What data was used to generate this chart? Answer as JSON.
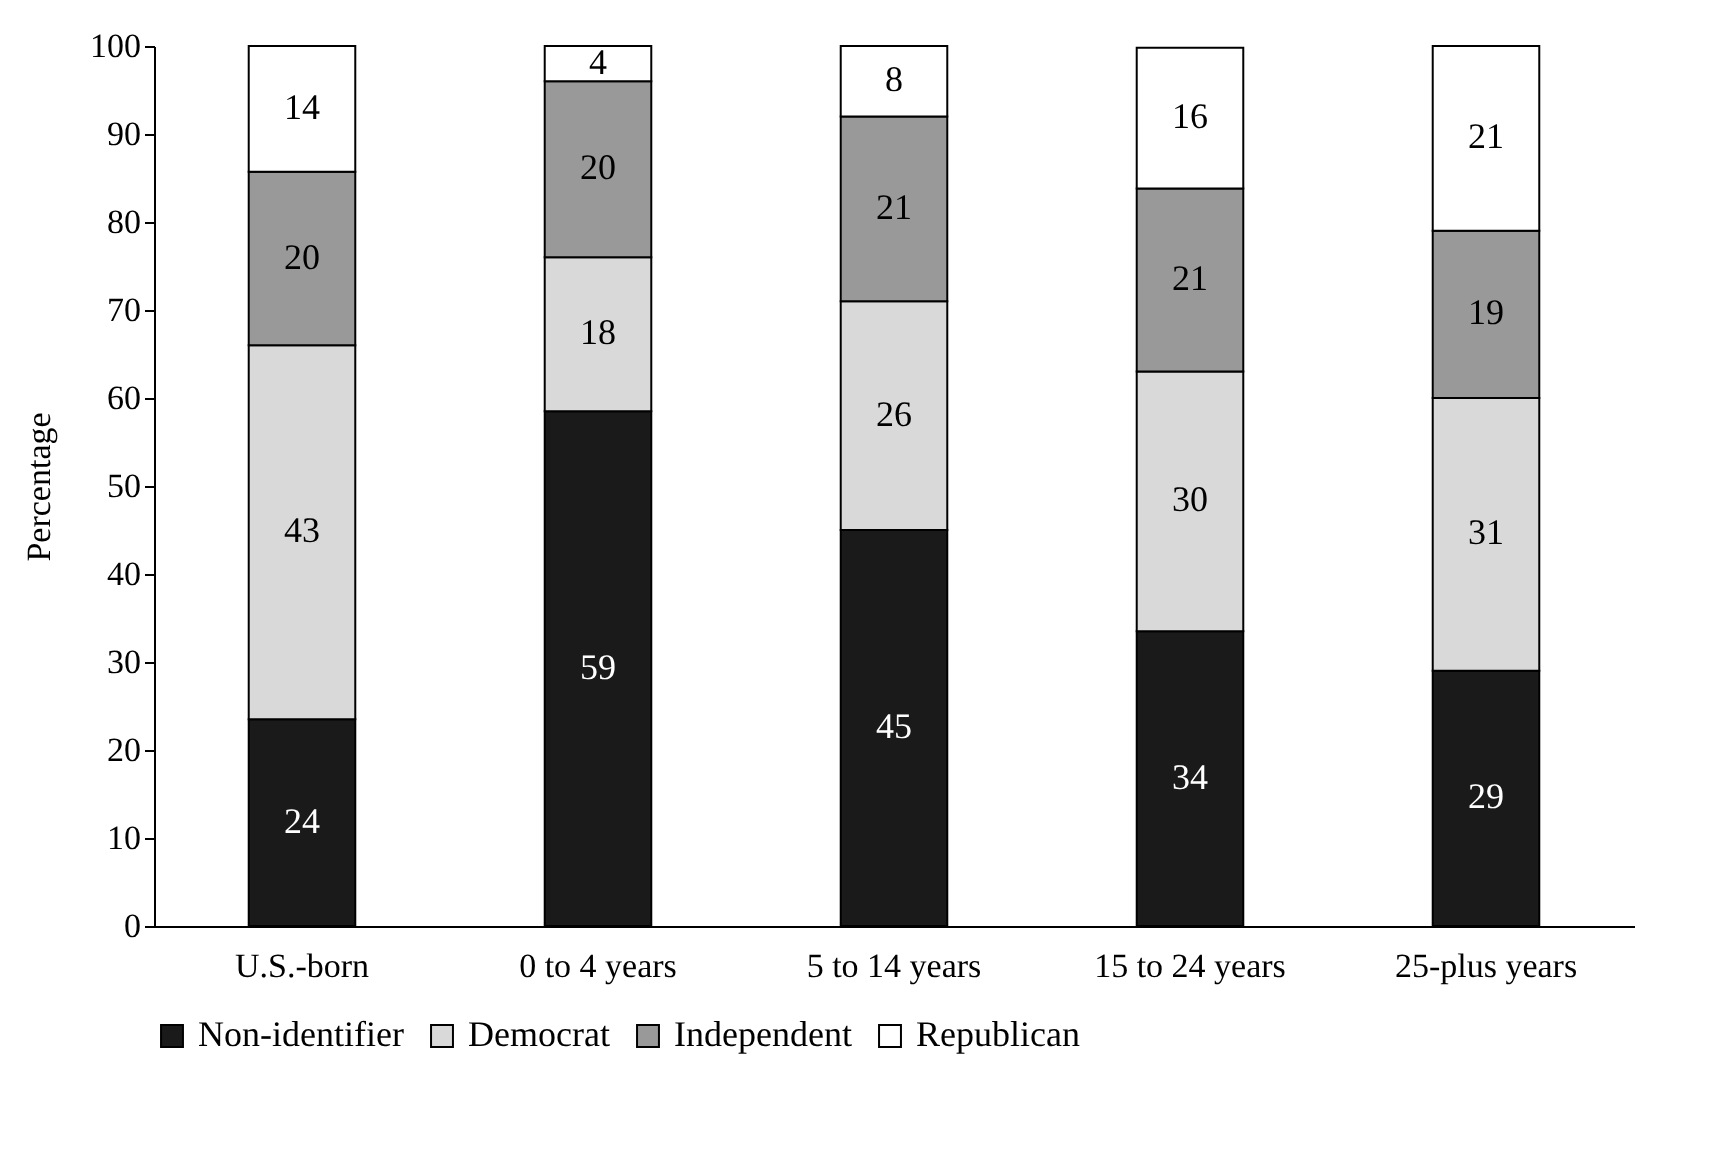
{
  "chart_data": {
    "type": "bar",
    "stacked": true,
    "ylabel": "Percentage",
    "categories": [
      "U.S.-born",
      "0 to 4 years",
      "5 to 14 years",
      "15 to 24 years",
      "25-plus years"
    ],
    "series": [
      {
        "name": "Non-identifier",
        "color": "#1a1a1a",
        "values": [
          23.5,
          58.5,
          45,
          33.5,
          29
        ],
        "value_labels": [
          "24",
          "59",
          "45",
          "34",
          "29"
        ]
      },
      {
        "name": "Democrat",
        "color": "#d9d9d9",
        "values": [
          42.5,
          17.5,
          26,
          29.5,
          31
        ],
        "value_labels": [
          "43",
          "18",
          "26",
          "30",
          "31"
        ]
      },
      {
        "name": "Independent",
        "color": "#999999",
        "values": [
          19.7,
          20,
          21,
          20.8,
          19
        ],
        "value_labels": [
          "20",
          "20",
          "21",
          "21",
          "19"
        ]
      },
      {
        "name": "Republican",
        "color": "#ffffff",
        "values": [
          14.3,
          4,
          8,
          16,
          21
        ],
        "value_labels": [
          "14",
          "4",
          "8",
          "16",
          "21"
        ]
      }
    ],
    "ylim": [
      0,
      100
    ],
    "yticks": [
      0,
      10,
      20,
      30,
      40,
      50,
      60,
      70,
      80,
      90,
      100
    ],
    "grid": false,
    "legend": "bottom"
  }
}
